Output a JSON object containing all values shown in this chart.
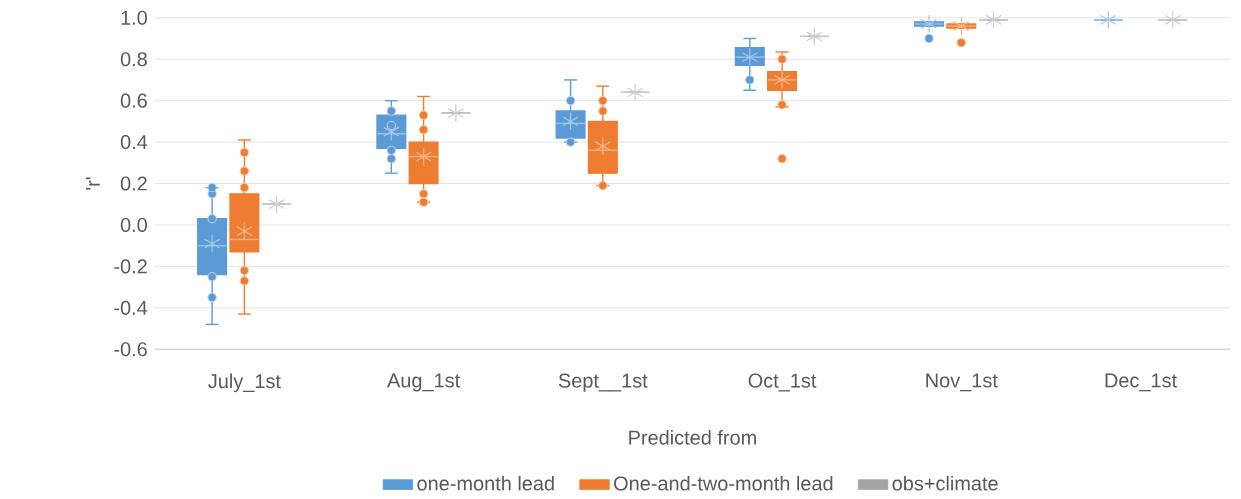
{
  "chart_data": {
    "type": "box",
    "xlabel": "Predicted from",
    "ylabel": "'r'",
    "categories": [
      "July_1st",
      "Aug_1st",
      "Sept__1st",
      "Oct_1st",
      "Nov_1st",
      "Dec_1st"
    ],
    "series": [
      {
        "name": "one-month lead",
        "color": "#5b9bd5",
        "boxes": [
          {
            "low": -0.48,
            "q1": -0.24,
            "median": -0.1,
            "q3": 0.03,
            "high": 0.18,
            "mean": -0.09,
            "outliers": [
              -0.35,
              -0.25,
              0.03,
              0.15,
              0.18
            ]
          },
          {
            "low": 0.25,
            "q1": 0.37,
            "median": 0.44,
            "q3": 0.53,
            "high": 0.6,
            "mean": 0.45,
            "outliers": [
              0.55,
              0.48,
              0.36,
              0.32
            ]
          },
          {
            "low": 0.4,
            "q1": 0.42,
            "median": 0.49,
            "q3": 0.55,
            "high": 0.7,
            "mean": 0.5,
            "outliers": [
              0.6,
              0.4
            ]
          },
          {
            "low": 0.65,
            "q1": 0.77,
            "median": 0.81,
            "q3": 0.855,
            "high": 0.9,
            "mean": 0.81,
            "outliers": [
              0.7
            ]
          },
          {
            "low": 0.96,
            "q1": 0.96,
            "median": 0.97,
            "q3": 0.98,
            "high": 0.98,
            "mean": 0.97,
            "outliers": [
              0.9
            ]
          },
          {
            "low": 0.99,
            "q1": 0.99,
            "median": 0.99,
            "q3": 0.99,
            "high": 0.99,
            "mean": 0.99
          }
        ]
      },
      {
        "name": "One-and-two-month lead",
        "color": "#ed7d31",
        "boxes": [
          {
            "low": -0.43,
            "q1": -0.13,
            "median": -0.07,
            "q3": 0.15,
            "high": 0.41,
            "mean": -0.03,
            "outliers": [
              0.35,
              0.26,
              0.18,
              -0.22,
              -0.27
            ]
          },
          {
            "low": 0.11,
            "q1": 0.2,
            "median": 0.33,
            "q3": 0.4,
            "high": 0.62,
            "mean": 0.33,
            "outliers": [
              0.53,
              0.46,
              0.15,
              0.11
            ]
          },
          {
            "low": 0.19,
            "q1": 0.25,
            "median": 0.36,
            "q3": 0.5,
            "high": 0.67,
            "mean": 0.38,
            "outliers": [
              0.6,
              0.55,
              0.19
            ]
          },
          {
            "low": 0.57,
            "q1": 0.65,
            "median": 0.7,
            "q3": 0.74,
            "high": 0.835,
            "mean": 0.7,
            "outliers": [
              0.8,
              0.58,
              0.32
            ]
          },
          {
            "low": 0.95,
            "q1": 0.95,
            "median": 0.96,
            "q3": 0.97,
            "high": 0.97,
            "mean": 0.96,
            "outliers": [
              0.88
            ]
          },
          null
        ]
      },
      {
        "name": "obs+climate",
        "color": "#a5a5a5",
        "boxes": [
          {
            "low": 0.1,
            "q1": 0.1,
            "median": 0.1,
            "q3": 0.1,
            "high": 0.1,
            "mean": 0.1
          },
          {
            "low": 0.54,
            "q1": 0.54,
            "median": 0.54,
            "q3": 0.54,
            "high": 0.54,
            "mean": 0.54
          },
          {
            "low": 0.64,
            "q1": 0.64,
            "median": 0.64,
            "q3": 0.64,
            "high": 0.64,
            "mean": 0.64
          },
          {
            "low": 0.91,
            "q1": 0.91,
            "median": 0.91,
            "q3": 0.91,
            "high": 0.91,
            "mean": 0.91
          },
          {
            "low": 0.99,
            "q1": 0.99,
            "median": 0.99,
            "q3": 0.99,
            "high": 0.99,
            "mean": 0.99
          },
          {
            "low": 0.99,
            "q1": 0.99,
            "median": 0.99,
            "q3": 0.99,
            "high": 0.99,
            "mean": 0.99
          }
        ]
      }
    ],
    "ylim": [
      -0.6,
      1.0
    ],
    "yticks": [
      {
        "value": -0.6,
        "label": "-0.6"
      },
      {
        "value": -0.4,
        "label": "-0.4"
      },
      {
        "value": -0.2,
        "label": "-0.2"
      },
      {
        "value": 0.0,
        "label": "0.0"
      },
      {
        "value": 0.2,
        "label": "0.2"
      },
      {
        "value": 0.4,
        "label": "0.4"
      },
      {
        "value": 0.6,
        "label": "0.6"
      },
      {
        "value": 0.8,
        "label": "0.8"
      },
      {
        "value": 1.0,
        "label": "1.0"
      }
    ],
    "grid": "y",
    "legend": "bottom"
  }
}
